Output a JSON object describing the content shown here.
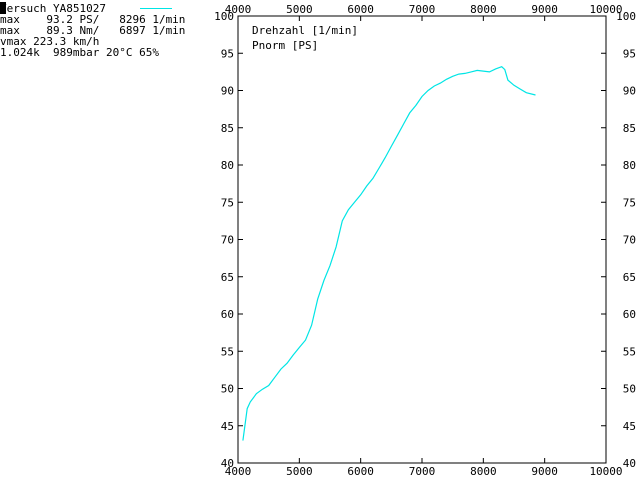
{
  "info": {
    "line1": "Versuch YA851027",
    "line2": "max    93.2 PS/   8296 1/min",
    "line3": "max    89.3 Nm/   6897 1/min",
    "line4": "vmax 223.3 km/h",
    "line5": "1.024k  989mbar 20°C 65%"
  },
  "chart_data": {
    "type": "line",
    "xlabel": "Drehzahl [1/min]",
    "ylabel": "Pnorm [PS]",
    "xlim": [
      4000,
      10000
    ],
    "ylim": [
      40,
      100
    ],
    "x_ticks": [
      "4000",
      "5000",
      "6000",
      "7000",
      "8000",
      "9000",
      "10000"
    ],
    "y_ticks": [
      "40",
      "45",
      "50",
      "55",
      "60",
      "65",
      "70",
      "75",
      "80",
      "85",
      "90",
      "95",
      "100"
    ],
    "grid": false,
    "legend": "top-left",
    "series": [
      {
        "name": "Versuch YA851027",
        "color": "#00e5e5",
        "x": [
          4080,
          4120,
          4150,
          4200,
          4300,
          4400,
          4500,
          4600,
          4700,
          4800,
          4900,
          5000,
          5100,
          5200,
          5300,
          5400,
          5500,
          5600,
          5700,
          5800,
          5900,
          6000,
          6100,
          6200,
          6300,
          6400,
          6500,
          6600,
          6700,
          6800,
          6900,
          7000,
          7100,
          7200,
          7300,
          7400,
          7500,
          7600,
          7700,
          7800,
          7900,
          8000,
          8100,
          8200,
          8300,
          8350,
          8400,
          8500,
          8600,
          8700,
          8850
        ],
        "y": [
          43.0,
          45.5,
          47.3,
          48.2,
          49.3,
          49.9,
          50.4,
          51.5,
          52.6,
          53.4,
          54.5,
          55.5,
          56.5,
          58.5,
          62.0,
          64.5,
          66.5,
          69.0,
          72.5,
          74.0,
          75.0,
          76.0,
          77.2,
          78.2,
          79.6,
          81.0,
          82.5,
          84.0,
          85.5,
          87.0,
          88.0,
          89.2,
          90.0,
          90.6,
          91.0,
          91.5,
          91.9,
          92.2,
          92.3,
          92.5,
          92.7,
          92.6,
          92.5,
          92.9,
          93.2,
          92.8,
          91.4,
          90.7,
          90.2,
          89.7,
          89.4
        ]
      }
    ]
  }
}
